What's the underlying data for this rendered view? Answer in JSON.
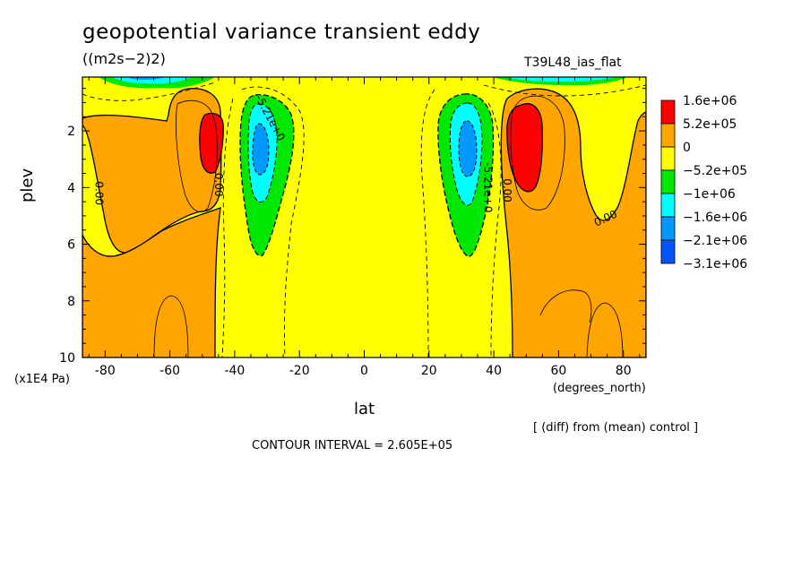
{
  "header": {
    "title": "geopotential variance transient eddy",
    "units": "((m2s−2)2)",
    "run_name": "T39L48_ias_flat"
  },
  "footer": {
    "diff_note": "[ (diff) from (mean) control ]",
    "contour_interval": "CONTOUR INTERVAL = 2.605E+05"
  },
  "colors": {
    "red": "#ff0000",
    "orange": "#ffa500",
    "yellow": "#ffff00",
    "green": "#00e800",
    "cyan": "#00ffff",
    "lightblue": "#0099ff",
    "blue": "#0055ff"
  },
  "chart_data": {
    "type": "heatmap",
    "title": "geopotential variance transient eddy",
    "xlabel": "lat",
    "xunit": "(degrees_north)",
    "ylabel": "plev",
    "yunit": "(x1E4 Pa)",
    "xlim": [
      -87,
      87
    ],
    "ylim": [
      10,
      0.1
    ],
    "x_ticks": [
      -80,
      -60,
      -40,
      -20,
      0,
      20,
      40,
      60,
      80
    ],
    "y_ticks": [
      2,
      4,
      6,
      8,
      10
    ],
    "colorbar": {
      "labels": [
        "1.6e+06",
        "5.2e+05",
        "0",
        "−5.2e+05",
        "−1e+06",
        "−1.6e+06",
        "−2.1e+06",
        "−3.1e+06"
      ],
      "colors": [
        "#ff0000",
        "#ffa500",
        "#ffff00",
        "#00e800",
        "#00ffff",
        "#0099ff",
        "#0055ff"
      ]
    },
    "contour_labels": [
      {
        "text": "0.00",
        "lat": -83,
        "plev": 4.2
      },
      {
        "text": "0.00",
        "lat": -46,
        "plev": 3.9
      },
      {
        "text": "-5.21e+0",
        "lat": -30,
        "plev": 1.6
      },
      {
        "text": "-5.21e+0",
        "lat": 37,
        "plev": 4.0
      },
      {
        "text": "0.00",
        "lat": 43,
        "plev": 4.1
      },
      {
        "text": "0.00",
        "lat": 75,
        "plev": 5.2
      }
    ],
    "features": [
      {
        "name": "positive maximum",
        "lat": -48,
        "plev": 2.3,
        "value_range": ">1.6e+06"
      },
      {
        "name": "negative minimum",
        "lat": -32,
        "plev": 2.6,
        "value_range": "-1.6e+06 to -2.1e+06"
      },
      {
        "name": "negative minimum",
        "lat": 33,
        "plev": 2.6,
        "value_range": "-1.6e+06 to -2.1e+06"
      },
      {
        "name": "positive maximum",
        "lat": 49,
        "plev": 2.7,
        "value_range": ">1.6e+06"
      }
    ]
  }
}
